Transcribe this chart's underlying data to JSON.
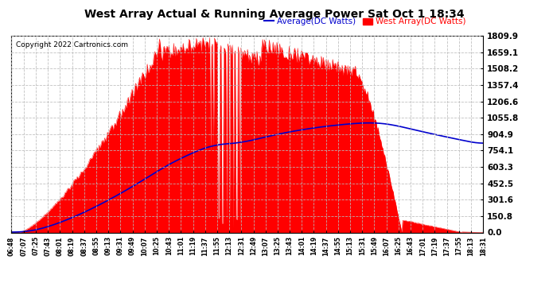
{
  "title": "West Array Actual & Running Average Power Sat Oct 1 18:34",
  "copyright": "Copyright 2022 Cartronics.com",
  "legend_avg": "Average(DC Watts)",
  "legend_west": "West Array(DC Watts)",
  "ymax": 1809.9,
  "ymin": 0.0,
  "yticks": [
    0.0,
    150.8,
    301.6,
    452.5,
    603.3,
    754.1,
    904.9,
    1055.8,
    1206.6,
    1357.4,
    1508.2,
    1659.1,
    1809.9
  ],
  "bg_color": "#ffffff",
  "fill_color": "#ff0000",
  "avg_color": "#0000cd",
  "title_color": "#000000",
  "copyright_color": "#000000",
  "grid_color": "#bbbbbb"
}
